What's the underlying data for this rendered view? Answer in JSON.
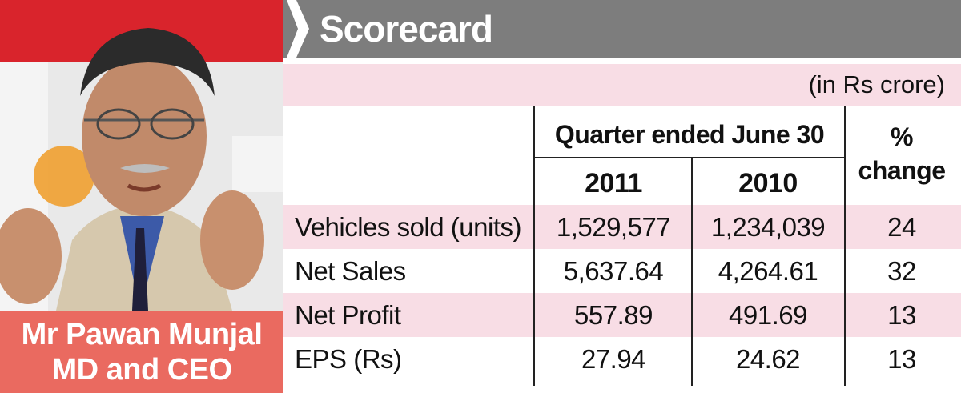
{
  "caption": {
    "name": "Mr Pawan Munjal",
    "role": "MD and CEO"
  },
  "scorecard": {
    "title": "Scorecard",
    "unit": "(in Rs crore)",
    "header_period": "Quarter ended June 30",
    "header_years": [
      "2011",
      "2010"
    ],
    "header_change_line1": "%",
    "header_change_line2": "change",
    "rows": [
      {
        "label": "Vehicles sold (units)",
        "v2011": "1,529,577",
        "v2010": "1,234,039",
        "change": "24"
      },
      {
        "label": "Net Sales",
        "v2011": "5,637.64",
        "v2010": "4,264.61",
        "change": "32"
      },
      {
        "label": "Net Profit",
        "v2011": "557.89",
        "v2010": "491.69",
        "change": "13"
      },
      {
        "label": "EPS (Rs)",
        "v2011": "27.94",
        "v2010": "24.62",
        "change": "13"
      }
    ]
  },
  "colors": {
    "title_bar": "#7d7d7d",
    "row_pink": "#f8dde5",
    "caption_bg": "#ea6a60"
  }
}
